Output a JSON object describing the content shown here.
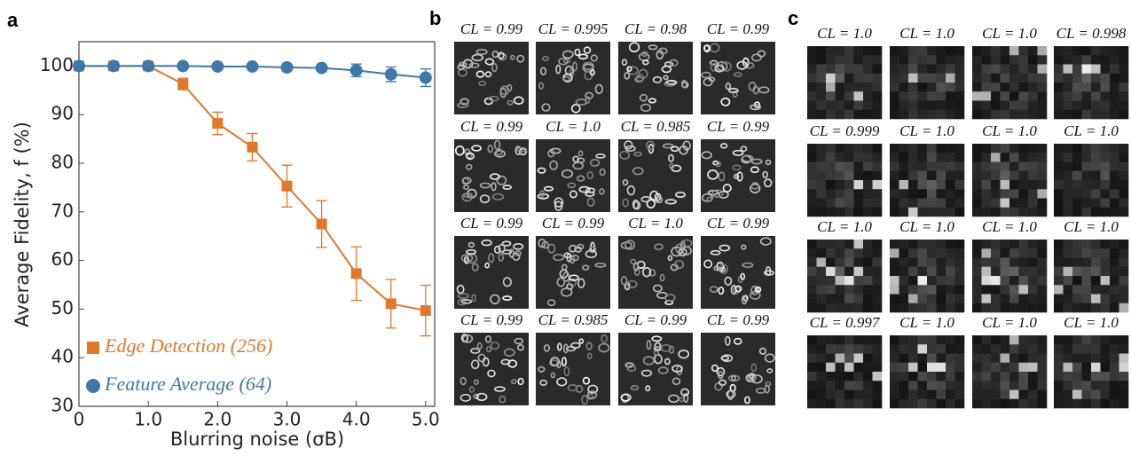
{
  "panel_labels": [
    "a",
    "b",
    "c"
  ],
  "chart_data": {
    "type": "line",
    "x_label": "Blurring noise (σB)",
    "y_label": "Average Fidelity, f (%)",
    "x": [
      0,
      0.5,
      1.0,
      1.5,
      2.0,
      2.5,
      3.0,
      3.5,
      4.0,
      4.5,
      5.0
    ],
    "xlim": [
      0,
      5.13
    ],
    "xticks": [
      0,
      {
        "value": 1,
        "label": "1.0"
      },
      {
        "value": 2,
        "label": "2.0"
      },
      {
        "value": 3,
        "label": "3.0"
      },
      {
        "value": 4,
        "label": "4.0"
      },
      {
        "value": 5,
        "label": "5.0"
      }
    ],
    "ylim": [
      30,
      105
    ],
    "yticks": [
      30,
      40,
      50,
      60,
      70,
      80,
      90,
      100
    ],
    "legend": "lower left",
    "series": [
      {
        "name": "Edge Detection (256)",
        "color": "#e0782c",
        "marker": "square",
        "values": [
          100,
          100,
          100,
          96.3,
          88.2,
          83.3,
          75.3,
          67.5,
          57.3,
          51.1,
          49.7
        ],
        "errors": [
          0,
          0,
          0,
          1.2,
          2.3,
          2.8,
          4.3,
          4.8,
          5.5,
          5.0,
          5.2
        ]
      },
      {
        "name": "Feature Average (64)",
        "color": "#3f78a8",
        "marker": "circle",
        "values": [
          100,
          100,
          100,
          100,
          99.9,
          99.9,
          99.7,
          99.6,
          99.1,
          98.3,
          97.6
        ],
        "errors": [
          0,
          0,
          0,
          0,
          0,
          0,
          0,
          0,
          1.3,
          1.5,
          1.8
        ]
      }
    ]
  },
  "panel_b": {
    "labels": [
      [
        "CL = 0.99",
        "CL = 0.995",
        "CL = 0.98",
        "CL = 0.99"
      ],
      [
        "CL = 0.99",
        "CL = 1.0",
        "CL = 0.985",
        "CL = 0.99"
      ],
      [
        "CL = 0.99",
        "CL = 0.99",
        "CL = 1.0",
        "CL = 0.99"
      ],
      [
        "CL = 0.99",
        "CL = 0.985",
        "CL = 0.99",
        "CL = 0.99"
      ]
    ]
  },
  "panel_c": {
    "labels": [
      [
        "CL = 1.0",
        "CL = 1.0",
        "CL = 1.0",
        "CL = 0.998"
      ],
      [
        "CL = 0.999",
        "CL = 1.0",
        "CL = 1.0",
        "CL = 1.0"
      ],
      [
        "CL = 1.0",
        "CL = 1.0",
        "CL = 1.0",
        "CL = 1.0"
      ],
      [
        "CL = 0.997",
        "CL = 1.0",
        "CL = 1.0",
        "CL = 1.0"
      ]
    ]
  }
}
